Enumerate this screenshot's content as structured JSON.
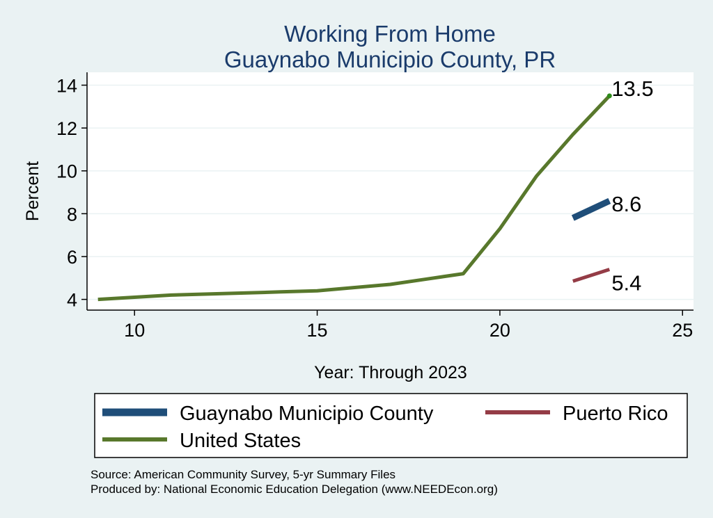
{
  "chart_data": {
    "type": "line",
    "title": "Working From Home",
    "subtitle": "Guaynabo Municipio County, PR",
    "xlabel": "Year: Through 2023",
    "ylabel": "Percent",
    "xlim": [
      8.7,
      25.3
    ],
    "ylim": [
      3.5,
      14.6
    ],
    "xticks": [
      10,
      15,
      20,
      25
    ],
    "yticks": [
      4,
      6,
      8,
      10,
      12,
      14
    ],
    "grid": true,
    "legend_position": "bottom",
    "series": [
      {
        "name": "Guaynabo Municipio County",
        "color": "#1f4e79",
        "x": [
          22,
          23
        ],
        "y": [
          7.8,
          8.6
        ],
        "end_label": "8.6"
      },
      {
        "name": "Puerto Rico",
        "color": "#943c46",
        "x": [
          22,
          23
        ],
        "y": [
          4.85,
          5.4
        ],
        "end_label": "5.4"
      },
      {
        "name": "United States",
        "color": "#58782c",
        "x": [
          9,
          10,
          11,
          12,
          13,
          14,
          15,
          16,
          17,
          18,
          19,
          20,
          21,
          22,
          23
        ],
        "y": [
          4.0,
          4.1,
          4.2,
          4.25,
          4.3,
          4.35,
          4.4,
          4.55,
          4.7,
          4.95,
          5.2,
          7.3,
          9.75,
          11.7,
          13.5
        ],
        "end_label": "13.5"
      }
    ]
  },
  "legend": {
    "items": [
      "Guaynabo Municipio County",
      "Puerto Rico",
      "United States"
    ]
  },
  "source": {
    "line1": "Source: American Community Survey, 5-yr Summary Files",
    "line2": "Produced by: National Economic Education Delegation (www.NEEDEcon.org)"
  }
}
